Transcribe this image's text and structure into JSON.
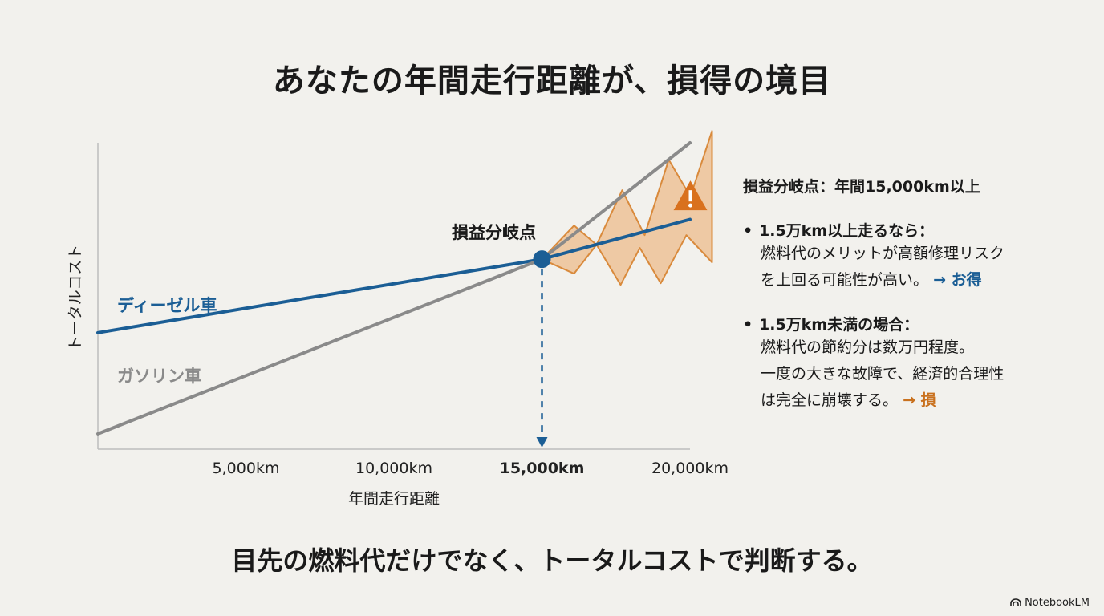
{
  "title": "あなたの年間走行距離が、損得の境目",
  "chart_data": {
    "type": "line",
    "xlabel": "年間走行距離",
    "ylabel": "トータルコスト",
    "x_ticks": [
      "5,000km",
      "10,000km",
      "15,000km",
      "20,000km"
    ],
    "x_tick_values": [
      5000,
      10000,
      15000,
      20000
    ],
    "highlight_tick": "15,000km",
    "xlim": [
      0,
      20000
    ],
    "series": [
      {
        "name": "ディーゼル車",
        "color": "#1b5e95",
        "x": [
          0,
          15000,
          20000
        ],
        "y": [
          0.38,
          0.62,
          0.75
        ]
      },
      {
        "name": "ガソリン車",
        "color": "#8a8a8a",
        "x": [
          0,
          15000,
          20000
        ],
        "y": [
          0.05,
          0.62,
          1.0
        ]
      }
    ],
    "break_even": {
      "label": "損益分岐点",
      "x": 15000,
      "y": 0.62
    },
    "risk_band_color": "#e9a15b",
    "warning_icon": "warning-triangle-icon"
  },
  "side": {
    "heading": "損益分岐点：年間15,000km以上",
    "notes": [
      {
        "head": "1.5万km以上走るなら：",
        "lines": [
          "燃料代のメリットが高額修理リスク",
          "を上回る可能性が高い。"
        ],
        "verdict": "→ お得"
      },
      {
        "head": "1.5万km未満の場合：",
        "lines": [
          "燃料代の節約分は数万円程度。",
          "一度の大きな故障で、経済的合理性",
          "は完全に崩壊する。"
        ],
        "verdict": "→ 損"
      }
    ]
  },
  "footer": "目先の燃料代だけでなく、トータルコストで判断する。",
  "brand": "NotebookLM"
}
